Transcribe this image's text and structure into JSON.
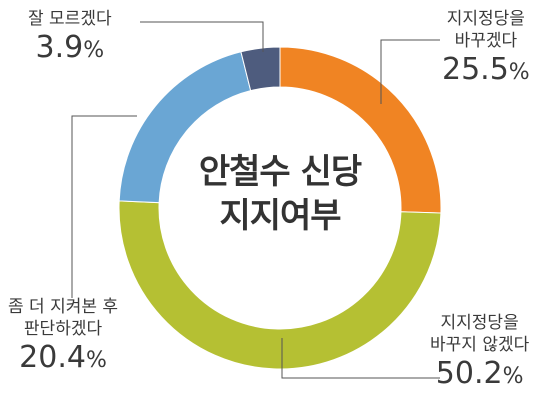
{
  "chart_data": {
    "type": "pie",
    "title": "안철수 신당 지지여부",
    "categories": [
      "지지정당을 바꾸겠다",
      "지지정당을 바꾸지 않겠다",
      "좀 더 지켜본 후 판단하겠다",
      "잘 모르겠다"
    ],
    "values": [
      25.5,
      50.2,
      20.4,
      3.9
    ],
    "unit": "%",
    "colors": [
      "#F08423",
      "#B5C033",
      "#6AA6D4",
      "#4E5C7E"
    ]
  },
  "center": {
    "line1": "안철수 신당",
    "line2": "지지여부"
  },
  "labels": [
    {
      "lines": [
        "지지정당을",
        "바꾸겠다"
      ],
      "value": "25.5",
      "unit": "%"
    },
    {
      "lines": [
        "지지정당을",
        "바꾸지 않겠다"
      ],
      "value": "50.2",
      "unit": "%"
    },
    {
      "lines": [
        "좀 더 지켜본 후",
        "판단하겠다"
      ],
      "value": "20.4",
      "unit": "%"
    },
    {
      "lines": [
        "잘 모르겠다"
      ],
      "value": "3.9",
      "unit": "%"
    }
  ]
}
